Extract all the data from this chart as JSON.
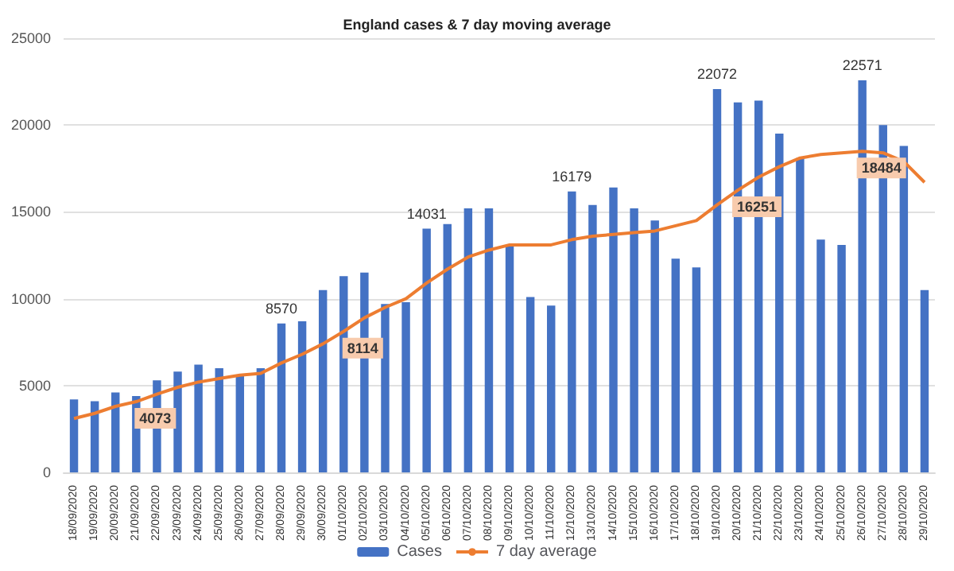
{
  "chart_data": {
    "type": "bar",
    "title": "England cases & 7 day moving average",
    "categories": [
      "18/09/2020",
      "19/09/2020",
      "20/09/2020",
      "21/09/2020",
      "22/09/2020",
      "23/09/2020",
      "24/09/2020",
      "25/09/2020",
      "26/09/2020",
      "27/09/2020",
      "28/09/2020",
      "29/09/2020",
      "30/09/2020",
      "01/10/2020",
      "02/10/2020",
      "03/10/2020",
      "04/10/2020",
      "05/10/2020",
      "06/10/2020",
      "07/10/2020",
      "08/10/2020",
      "09/10/2020",
      "10/10/2020",
      "11/10/2020",
      "12/10/2020",
      "13/10/2020",
      "14/10/2020",
      "15/10/2020",
      "16/10/2020",
      "17/10/2020",
      "18/10/2020",
      "19/10/2020",
      "20/10/2020",
      "21/10/2020",
      "22/10/2020",
      "23/10/2020",
      "24/10/2020",
      "25/10/2020",
      "26/10/2020",
      "27/10/2020",
      "28/10/2020",
      "29/10/2020"
    ],
    "series": [
      {
        "name": "Cases",
        "color": "#4472c4",
        "values": [
          4200,
          4100,
          4600,
          4400,
          5300,
          5800,
          6200,
          6000,
          5600,
          6000,
          8570,
          8700,
          10500,
          11300,
          11500,
          9700,
          9800,
          14031,
          14300,
          15200,
          15200,
          13000,
          10100,
          9600,
          16179,
          15400,
          16400,
          15200,
          14500,
          12300,
          11800,
          22072,
          21300,
          21400,
          19500,
          18100,
          13400,
          13100,
          22571,
          20000,
          18800,
          10500
        ],
        "value_labels": [
          null,
          null,
          null,
          null,
          null,
          null,
          null,
          null,
          null,
          null,
          "8570",
          null,
          null,
          null,
          null,
          null,
          null,
          "14031",
          null,
          null,
          null,
          null,
          null,
          null,
          "16179",
          null,
          null,
          null,
          null,
          null,
          null,
          "22072",
          null,
          null,
          null,
          null,
          null,
          null,
          "22571",
          null,
          null,
          null
        ]
      },
      {
        "name": "7 day average",
        "type": "line",
        "color": "#ed7d31",
        "marker": "none",
        "values": [
          3100,
          3400,
          3800,
          4073,
          4500,
          4900,
          5200,
          5400,
          5600,
          5700,
          6300,
          6800,
          7400,
          8114,
          8900,
          9500,
          10000,
          10900,
          11700,
          12400,
          12800,
          13100,
          13100,
          13100,
          13400,
          13600,
          13700,
          13800,
          13900,
          14200,
          14500,
          15400,
          16251,
          17000,
          17600,
          18100,
          18300,
          18400,
          18484,
          18400,
          17900,
          16700
        ],
        "value_labels": [
          null,
          null,
          null,
          "4073",
          null,
          null,
          null,
          null,
          null,
          null,
          null,
          null,
          null,
          "8114",
          null,
          null,
          null,
          null,
          null,
          null,
          null,
          null,
          null,
          null,
          null,
          null,
          null,
          null,
          null,
          null,
          null,
          null,
          "16251",
          null,
          null,
          null,
          null,
          null,
          "18484",
          null,
          null,
          null
        ]
      }
    ],
    "ylim": [
      0,
      25000
    ],
    "yticks": [
      0,
      5000,
      10000,
      15000,
      20000,
      25000
    ],
    "grid": "y",
    "legend": "bottom"
  }
}
